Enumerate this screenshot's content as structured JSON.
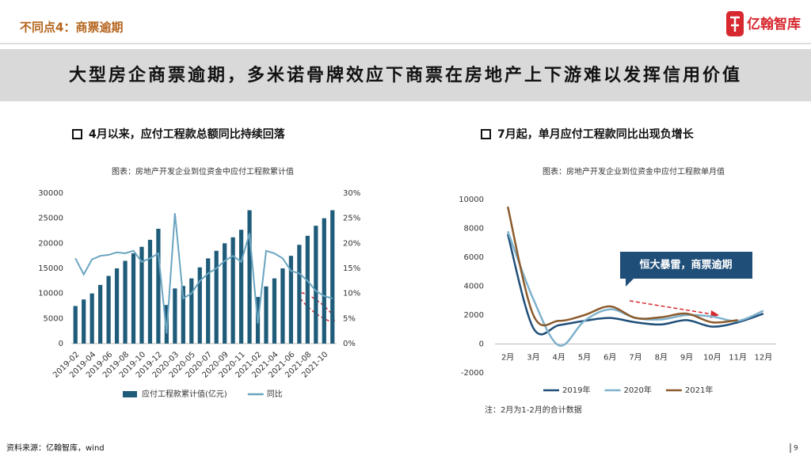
{
  "header": {
    "section": "不同点4：商票逾期",
    "logo": "亿翰智库"
  },
  "banner": "大型房企商票逾期，多米诺骨牌效应下商票在房地产上下游难以发挥信用价值",
  "panels": [
    {
      "heading": "4月以来，应付工程款总额同比持续回落"
    },
    {
      "heading": "7月起，单月应付工程款同比出现负增长"
    }
  ],
  "chart_data": [
    {
      "type": "bar",
      "subtitle": "图表：房地产开发企业到位资金中应付工程款累计值",
      "categories": [
        "2019-02",
        null,
        "2019-04",
        null,
        "2019-06",
        null,
        "2019-08",
        null,
        "2019-10",
        null,
        "2019-12",
        null,
        "2020-03",
        null,
        "2020-05",
        null,
        "2020-07",
        null,
        "2020-09",
        null,
        "2020-11",
        null,
        "2021-02",
        null,
        "2021-04",
        null,
        "2021-06",
        null,
        "2021-08",
        null,
        "2021-10",
        null
      ],
      "series": [
        {
          "name": "应付工程款累计值(亿元)",
          "type": "bar",
          "color": "#1f5c7a",
          "values": [
            7500,
            8800,
            10000,
            11700,
            13500,
            15000,
            16500,
            18000,
            19300,
            20700,
            22900,
            7700,
            11000,
            11500,
            13000,
            15200,
            17000,
            18500,
            20000,
            21200,
            22700,
            26600,
            9300,
            11400,
            13000,
            15000,
            17500,
            19700,
            21500,
            23500,
            25000,
            26600
          ]
        },
        {
          "name": "同比",
          "type": "line",
          "axis": "y2",
          "color": "#6aa5c0",
          "values": [
            17,
            13.8,
            16.8,
            17.5,
            17.7,
            18.2,
            18,
            18.5,
            16.3,
            17,
            18,
            2,
            26,
            9,
            10,
            12.5,
            14,
            15,
            16.5,
            17.5,
            16.3,
            22,
            4,
            18.5,
            18,
            17,
            14.5,
            14,
            12.5,
            10.5,
            9.5,
            9
          ]
        }
      ],
      "ylim": [
        0,
        30000
      ],
      "yticks": [
        0,
        5000,
        10000,
        15000,
        20000,
        25000,
        30000
      ],
      "y2lim": [
        0,
        30
      ],
      "y2ticks": [
        {
          "value": 0,
          "label": "0%"
        },
        {
          "value": 5,
          "label": "5%"
        },
        {
          "value": 10,
          "label": "10%"
        },
        {
          "value": 15,
          "label": "15%"
        },
        {
          "value": 20,
          "label": "20%"
        },
        {
          "value": 25,
          "label": "25%"
        },
        {
          "value": 30,
          "label": "30%"
        }
      ],
      "grid": false,
      "legend": "bottom"
    },
    {
      "type": "line",
      "subtitle": "图表：房地产开发企业到位资金中应付工程款单月值",
      "categories": [
        "2月",
        "3月",
        "4月",
        "5月",
        "6月",
        "7月",
        "8月",
        "9月",
        "10月",
        "11月",
        "12月"
      ],
      "series": [
        {
          "name": "2019年",
          "color": "#1f4e79",
          "values": [
            7600,
            1100,
            1300,
            1600,
            1800,
            1500,
            1350,
            1650,
            1200,
            1500,
            2100
          ]
        },
        {
          "name": "2020年",
          "color": "#7fb2cc",
          "values": [
            7800,
            3100,
            -100,
            1600,
            2400,
            1800,
            1700,
            2000,
            1900,
            1600,
            2300
          ]
        },
        {
          "name": "2021年",
          "color": "#8b5a2b",
          "values": [
            9500,
            2000,
            1600,
            2000,
            2600,
            1800,
            1850,
            2100,
            1500,
            1650,
            null
          ]
        }
      ],
      "ylim": [
        -2000,
        10000
      ],
      "yticks": [
        -2000,
        0,
        2000,
        4000,
        6000,
        8000,
        10000
      ],
      "grid": false,
      "legend": "bottom",
      "annotation": "恒大暴雷，商票逾期",
      "note": "注：2月为1-2月的合计数据"
    }
  ],
  "footer": {
    "source": "资料来源：亿翰智库，wind",
    "page": "9"
  }
}
